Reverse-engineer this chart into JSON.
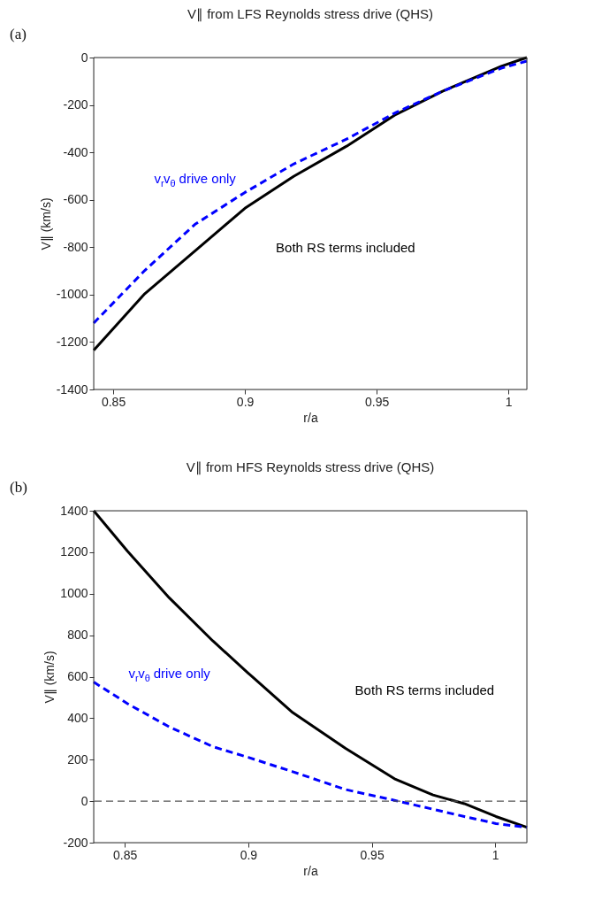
{
  "chart_data": [
    {
      "type": "line",
      "title": "V∥ from LFS Reynolds stress drive (QHS)",
      "xlabel": "r/a",
      "ylabel": "V∥ (km/s)",
      "annotations": [
        "(a)"
      ],
      "xlim": [
        0.8426,
        1.007
      ],
      "xticks": [
        0.85,
        0.9,
        0.95,
        {
          "value": 1,
          "label": "1"
        }
      ],
      "ylim": [
        -1400,
        0
      ],
      "yticks": [
        -1400,
        -1200,
        -1000,
        -800,
        -600,
        -400,
        -200,
        0
      ],
      "grid": false,
      "legend": false,
      "series": [
        {
          "name": "Both RS terms included",
          "color": "#000000",
          "line_style": "solid",
          "x": [
            0.8426,
            0.862,
            0.881,
            0.9,
            0.9185,
            0.9386,
            0.9573,
            0.975,
            0.9973,
            1.007
          ],
          "values": [
            -1235,
            -996,
            -816,
            -636,
            -501,
            -374,
            -240,
            -142,
            -37,
            0
          ]
        },
        {
          "name": "v$_{r}$v$_{θ}$ drive only",
          "color": "#0000ff",
          "line_style": "dashed",
          "x": [
            0.8426,
            0.862,
            0.881,
            0.9,
            0.9185,
            0.9386,
            0.9573,
            0.975,
            0.9973,
            1.007
          ],
          "values": [
            -1120,
            -898,
            -704,
            -569,
            -449,
            -344,
            -232,
            -142,
            -45,
            -15
          ]
        }
      ]
    },
    {
      "type": "line",
      "title": "V∥ from HFS Reynolds stress drive (QHS)",
      "xlabel": "r/a",
      "ylabel": "V∥ (km/s)",
      "annotations": [
        "(b)"
      ],
      "xlim": [
        0.8374,
        1.0128
      ],
      "xticks": [
        0.85,
        0.9,
        0.95,
        {
          "value": 1,
          "label": "1"
        }
      ],
      "ylim": [
        -200,
        1400
      ],
      "yticks": [
        -200,
        0,
        200,
        400,
        600,
        800,
        1000,
        1200,
        1400
      ],
      "grid": false,
      "legend": false,
      "ref_lines": [
        {
          "axis": "y",
          "value": 0,
          "label": null,
          "color": "#555555",
          "line_style": "dashed"
        }
      ],
      "series": [
        {
          "name": "Both RS terms included",
          "color": "#000000",
          "line_style": "solid",
          "x": [
            0.8374,
            0.8511,
            0.868,
            0.8856,
            0.9,
            0.918,
            0.9394,
            0.9592,
            0.9748,
            0.9875,
            1.0003,
            1.0128
          ],
          "values": [
            1400,
            1205,
            980,
            773,
            617,
            427,
            254,
            108,
            30,
            -12,
            -74,
            -126
          ]
        },
        {
          "name": "v$_{r}$v$_{θ}$ drive only",
          "color": "#0000ff",
          "line_style": "dashed",
          "x": [
            0.8374,
            0.8511,
            0.868,
            0.8856,
            0.9,
            0.918,
            0.9394,
            0.9592,
            0.9748,
            0.9875,
            1.0003,
            1.0128
          ],
          "values": [
            574,
            470,
            358,
            263,
            211,
            142,
            56,
            4,
            -39,
            -74,
            -108,
            -126
          ]
        }
      ]
    }
  ]
}
